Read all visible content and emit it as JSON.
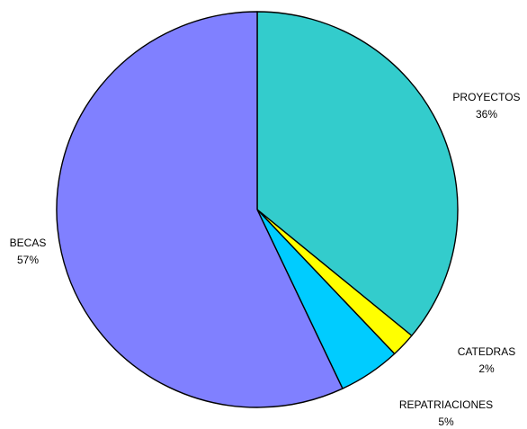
{
  "chart_data": {
    "type": "pie",
    "title": "",
    "start_angle_deg": 0,
    "direction": "clockwise",
    "slices": [
      {
        "name": "PROYECTOS",
        "value": 36,
        "label": "36%",
        "color": "#33CCCC"
      },
      {
        "name": "CATEDRAS",
        "value": 2,
        "label": "2%",
        "color": "#FFFF00"
      },
      {
        "name": "REPATRIACIONES",
        "value": 5,
        "label": "5%",
        "color": "#00CCFF"
      },
      {
        "name": "BECAS",
        "value": 57,
        "label": "57%",
        "color": "#8080FF"
      }
    ],
    "legend": "none"
  }
}
